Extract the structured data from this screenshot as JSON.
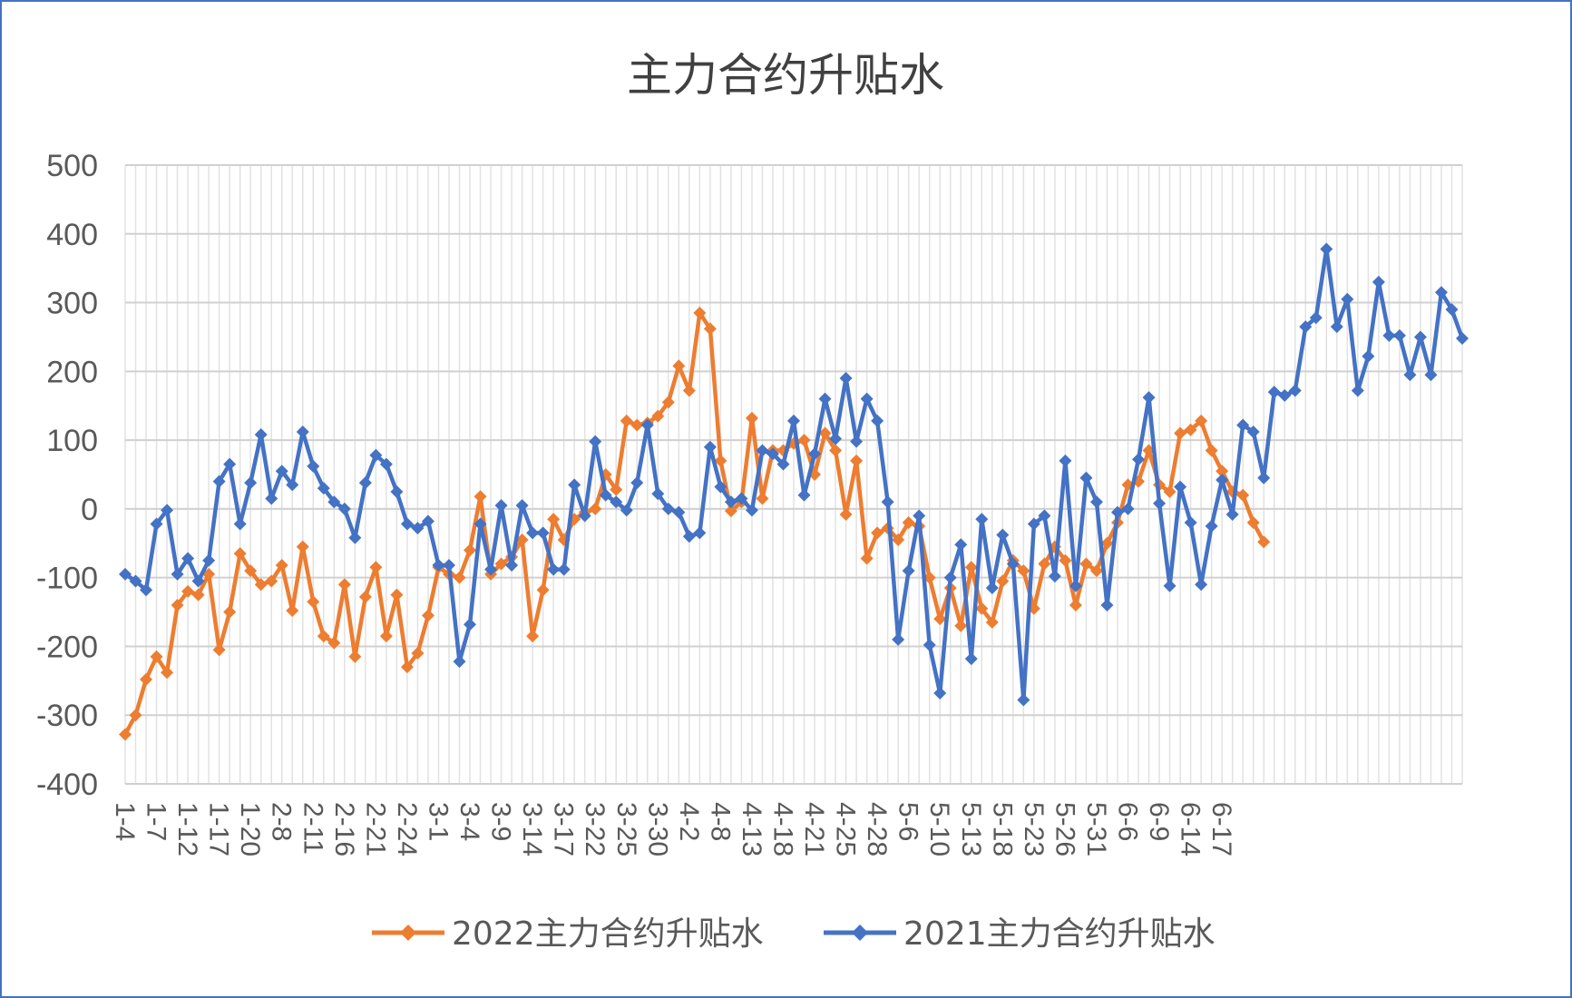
{
  "chart_data": {
    "type": "line",
    "title": "主力合约升贴水",
    "ylim": [
      -400,
      500
    ],
    "yticks": [
      500,
      400,
      300,
      200,
      100,
      0,
      -100,
      -200,
      -300,
      -400
    ],
    "grid": true,
    "legend_position": "bottom",
    "x_tick_labels": [
      "1-4",
      "1-7",
      "1-12",
      "1-17",
      "1-20",
      "2-8",
      "2-11",
      "2-16",
      "2-21",
      "2-24",
      "3-1",
      "3-4",
      "3-9",
      "3-14",
      "3-17",
      "3-22",
      "3-25",
      "3-30",
      "4-2",
      "4-8",
      "4-13",
      "4-18",
      "4-21",
      "4-25",
      "4-28",
      "5-6",
      "5-10",
      "5-13",
      "5-18",
      "5-23",
      "5-26",
      "5-31",
      "6-6",
      "6-9",
      "6-14",
      "6-17"
    ],
    "series": [
      {
        "name": "2022主力合约升贴水",
        "color": "#ed7d31",
        "values": [
          -328,
          -300,
          -248,
          -215,
          -238,
          -140,
          -120,
          -125,
          -95,
          -205,
          -150,
          -65,
          -90,
          -110,
          -105,
          -82,
          -148,
          -55,
          -135,
          -185,
          -195,
          -110,
          -215,
          -128,
          -85,
          -185,
          -125,
          -230,
          -210,
          -155,
          -85,
          -95,
          -100,
          -60,
          18,
          -95,
          -80,
          -70,
          -45,
          -185,
          -118,
          -15,
          -45,
          -15,
          -5,
          0,
          50,
          28,
          128,
          122,
          125,
          135,
          155,
          208,
          172,
          285,
          262,
          70,
          -3,
          10,
          132,
          15,
          85,
          85,
          95,
          100,
          50,
          110,
          85,
          -8,
          70,
          -72,
          -35,
          -28,
          -45,
          -20,
          -25,
          -100,
          -160,
          -115,
          -170,
          -85,
          -145,
          -165,
          -105,
          -75,
          -90,
          -145,
          -80,
          -55,
          -75,
          -140,
          -80,
          -90,
          -50,
          -20,
          35,
          40,
          85,
          35,
          25,
          110,
          115,
          128,
          85,
          55,
          25,
          20,
          -20,
          -48
        ]
      },
      {
        "name": "2021主力合约升贴水",
        "color": "#4472c4",
        "values": [
          -95,
          -105,
          -118,
          -22,
          -2,
          -95,
          -72,
          -105,
          -75,
          40,
          65,
          -22,
          38,
          108,
          15,
          55,
          35,
          112,
          62,
          30,
          10,
          0,
          -42,
          38,
          78,
          65,
          25,
          -22,
          -28,
          -18,
          -82,
          -82,
          -222,
          -168,
          -22,
          -88,
          5,
          -82,
          5,
          -35,
          -35,
          -88,
          -88,
          35,
          -10,
          98,
          20,
          10,
          -2,
          38,
          122,
          22,
          0,
          -5,
          -40,
          -35,
          90,
          32,
          10,
          15,
          -2,
          85,
          80,
          65,
          128,
          20,
          80,
          160,
          102,
          190,
          98,
          160,
          128,
          10,
          -190,
          -90,
          -10,
          -198,
          -268,
          -100,
          -52,
          -218,
          -15,
          -115,
          -38,
          -80,
          -278,
          -22,
          -10,
          -98,
          70,
          -112,
          45,
          10,
          -140,
          -5,
          0,
          72,
          162,
          8,
          -112,
          32,
          -20,
          -110,
          -25,
          42,
          -8,
          122,
          112,
          45,
          170,
          165,
          172,
          265,
          278,
          378,
          265,
          305,
          172,
          222,
          330,
          252,
          252,
          195,
          250,
          195,
          315,
          290,
          248
        ]
      }
    ]
  }
}
